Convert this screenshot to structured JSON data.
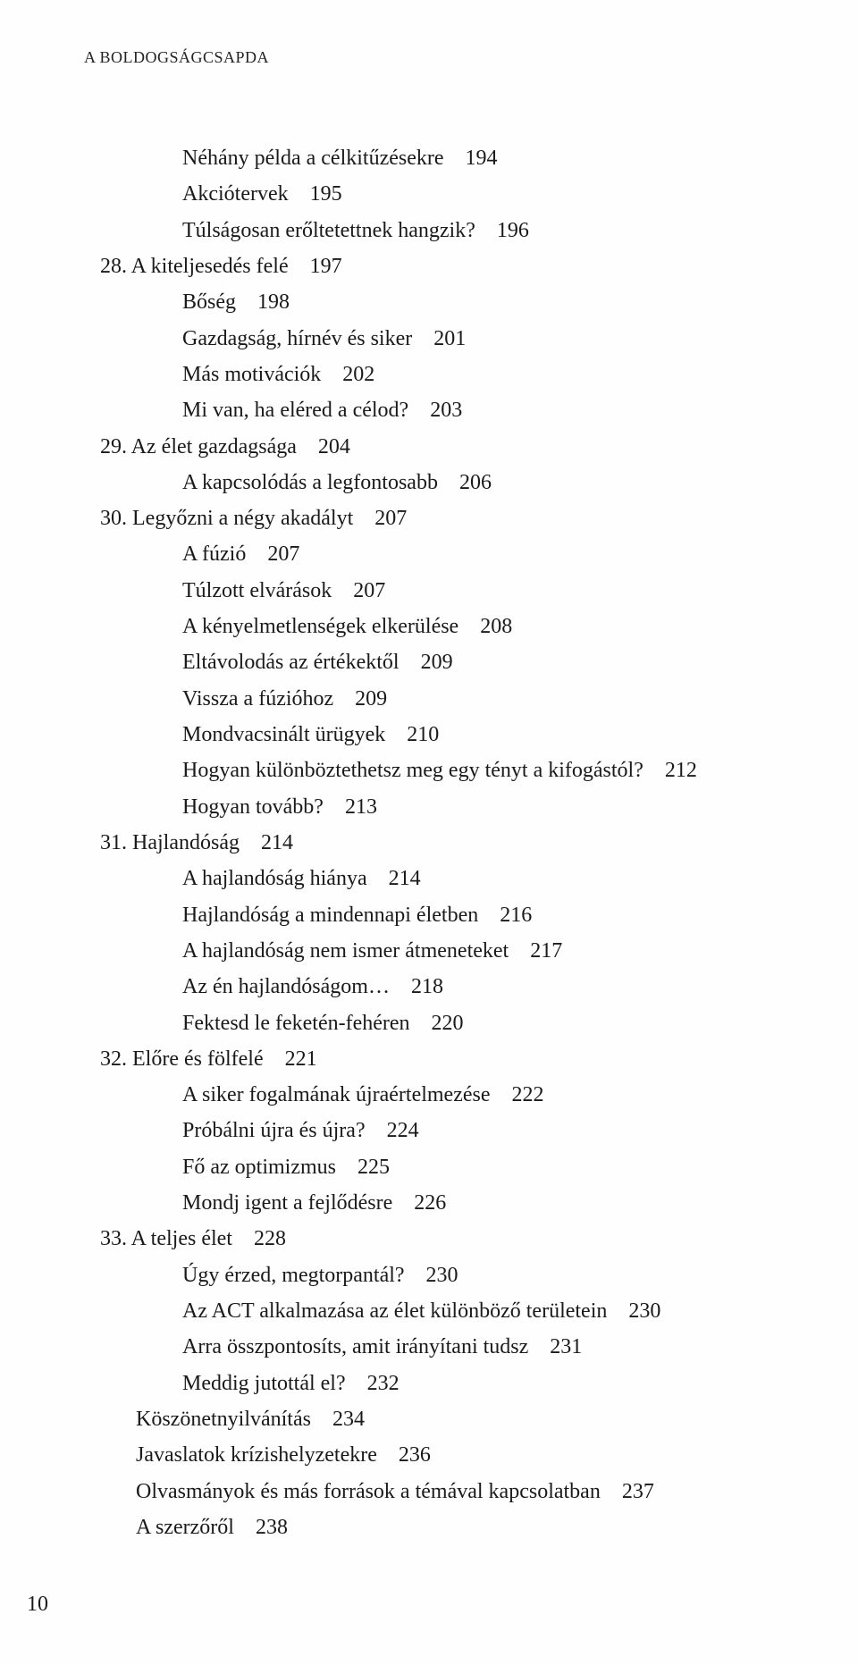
{
  "header": "A BOLDOGSÁGCSAPDA",
  "page_number": "10",
  "lines": [
    {
      "cls": "indent-2",
      "text": "Néhány példa a célkitűzésekre 194"
    },
    {
      "cls": "indent-2",
      "text": "Akciótervek 195"
    },
    {
      "cls": "indent-2",
      "text": "Túlságosan erőltetettnek hangzik? 196"
    },
    {
      "cls": "chapter",
      "text": "28. A kiteljesedés felé 197"
    },
    {
      "cls": "indent-2",
      "text": "Bőség 198"
    },
    {
      "cls": "indent-2",
      "text": "Gazdagság, hírnév és siker 201"
    },
    {
      "cls": "indent-2",
      "text": "Más motivációk 202"
    },
    {
      "cls": "indent-2",
      "text": "Mi van, ha eléred a célod? 203"
    },
    {
      "cls": "chapter",
      "text": "29. Az élet gazdagsága 204"
    },
    {
      "cls": "indent-2",
      "text": "A kapcsolódás a legfontosabb 206"
    },
    {
      "cls": "chapter",
      "text": "30. Legyőzni a négy akadályt 207"
    },
    {
      "cls": "indent-2",
      "text": "A fúzió 207"
    },
    {
      "cls": "indent-2",
      "text": "Túlzott elvárások 207"
    },
    {
      "cls": "indent-2",
      "text": "A kényelmetlenségek elkerülése 208"
    },
    {
      "cls": "indent-2",
      "text": "Eltávolodás az értékektől 209"
    },
    {
      "cls": "indent-2",
      "text": "Vissza a fúzióhoz 209"
    },
    {
      "cls": "indent-2",
      "text": "Mondvacsinált ürügyek 210"
    },
    {
      "cls": "indent-2",
      "text": "Hogyan különböztethetsz meg egy tényt a kifogástól? 212"
    },
    {
      "cls": "indent-2",
      "text": "Hogyan tovább? 213"
    },
    {
      "cls": "chapter",
      "text": "31. Hajlandóság 214"
    },
    {
      "cls": "indent-2",
      "text": "A hajlandóság hiánya 214"
    },
    {
      "cls": "indent-2",
      "text": "Hajlandóság a mindennapi életben 216"
    },
    {
      "cls": "indent-2",
      "text": "A hajlandóság nem ismer átmeneteket 217"
    },
    {
      "cls": "indent-2",
      "text": "Az én hajlandóságom… 218"
    },
    {
      "cls": "indent-2",
      "text": "Fektesd le feketén-fehéren 220"
    },
    {
      "cls": "chapter",
      "text": "32. Előre és fölfelé 221"
    },
    {
      "cls": "indent-2",
      "text": "A siker fogalmának újraértelmezése 222"
    },
    {
      "cls": "indent-2",
      "text": "Próbálni újra és újra? 224"
    },
    {
      "cls": "indent-2",
      "text": "Fő az optimizmus 225"
    },
    {
      "cls": "indent-2",
      "text": "Mondj igent a fejlődésre 226"
    },
    {
      "cls": "chapter",
      "text": "33. A teljes élet 228"
    },
    {
      "cls": "indent-2",
      "text": "Úgy érzed, megtorpantál? 230"
    },
    {
      "cls": "indent-2",
      "text": "Az ACT alkalmazása az élet különböző területein 230"
    },
    {
      "cls": "indent-2",
      "text": "Arra összpontosíts, amit irányítani tudsz 231"
    },
    {
      "cls": "indent-2",
      "text": "Meddig jutottál el? 232"
    },
    {
      "cls": "indent-1",
      "text": "Köszönetnyilvánítás 234"
    },
    {
      "cls": "indent-1",
      "text": "Javaslatok krízishelyzetekre 236"
    },
    {
      "cls": "indent-1",
      "text": "Olvasmányok és más források a témával kapcsolatban 237"
    },
    {
      "cls": "indent-1",
      "text": "A szerzőről 238"
    }
  ]
}
